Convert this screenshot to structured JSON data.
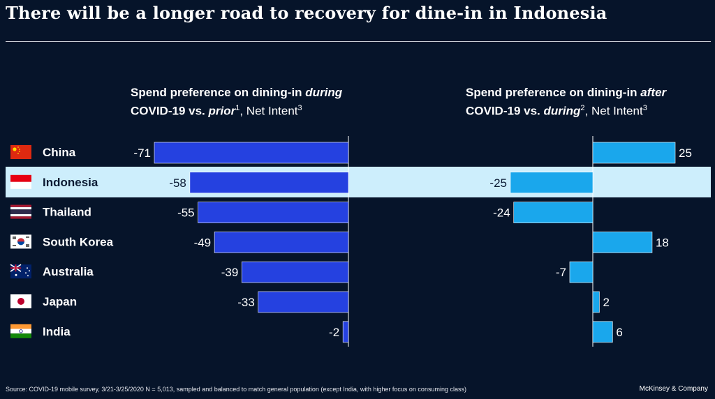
{
  "title": "There will be a longer road to recovery for dine-in in Indonesia",
  "panels": {
    "left": {
      "line1_a": "Spend preference on dining-in ",
      "line1_b": "during",
      "line2_a": "COVID-19 vs. ",
      "line2_b": "prior",
      "sup1": "1",
      "line2_c": ", Net Intent",
      "sup2": "3"
    },
    "right": {
      "line1_a": "Spend preference on dining-in ",
      "line1_b": "after",
      "line2_a": "COVID-19 vs. ",
      "line2_b": "during",
      "sup1": "2",
      "line2_c": ", Net Intent",
      "sup2": "3"
    }
  },
  "highlight_country": "Indonesia",
  "colors": {
    "background": "#06142a",
    "left_bar": "#2541e0",
    "right_bar": "#1aa7ec",
    "highlight": "#cdeefc"
  },
  "chart_data": {
    "type": "bar",
    "orientation": "horizontal",
    "categories": [
      "China",
      "Indonesia",
      "Thailand",
      "South Korea",
      "Australia",
      "Japan",
      "India"
    ],
    "flags": [
      "china-flag-icon",
      "indonesia-flag-icon",
      "thailand-flag-icon",
      "south-korea-flag-icon",
      "australia-flag-icon",
      "japan-flag-icon",
      "india-flag-icon"
    ],
    "series": [
      {
        "values": [
          -71,
          -58,
          -55,
          -49,
          -39,
          -33,
          -2
        ]
      },
      {
        "values": [
          25,
          -25,
          -24,
          18,
          -7,
          2,
          6
        ]
      }
    ]
  },
  "footer": {
    "source": "Source: COVID-19 mobile survey, 3/21-3/25/2020 N = 5,013, sampled and balanced to match general population (except India, with higher focus on consuming class)",
    "brand": "McKinsey & Company"
  }
}
